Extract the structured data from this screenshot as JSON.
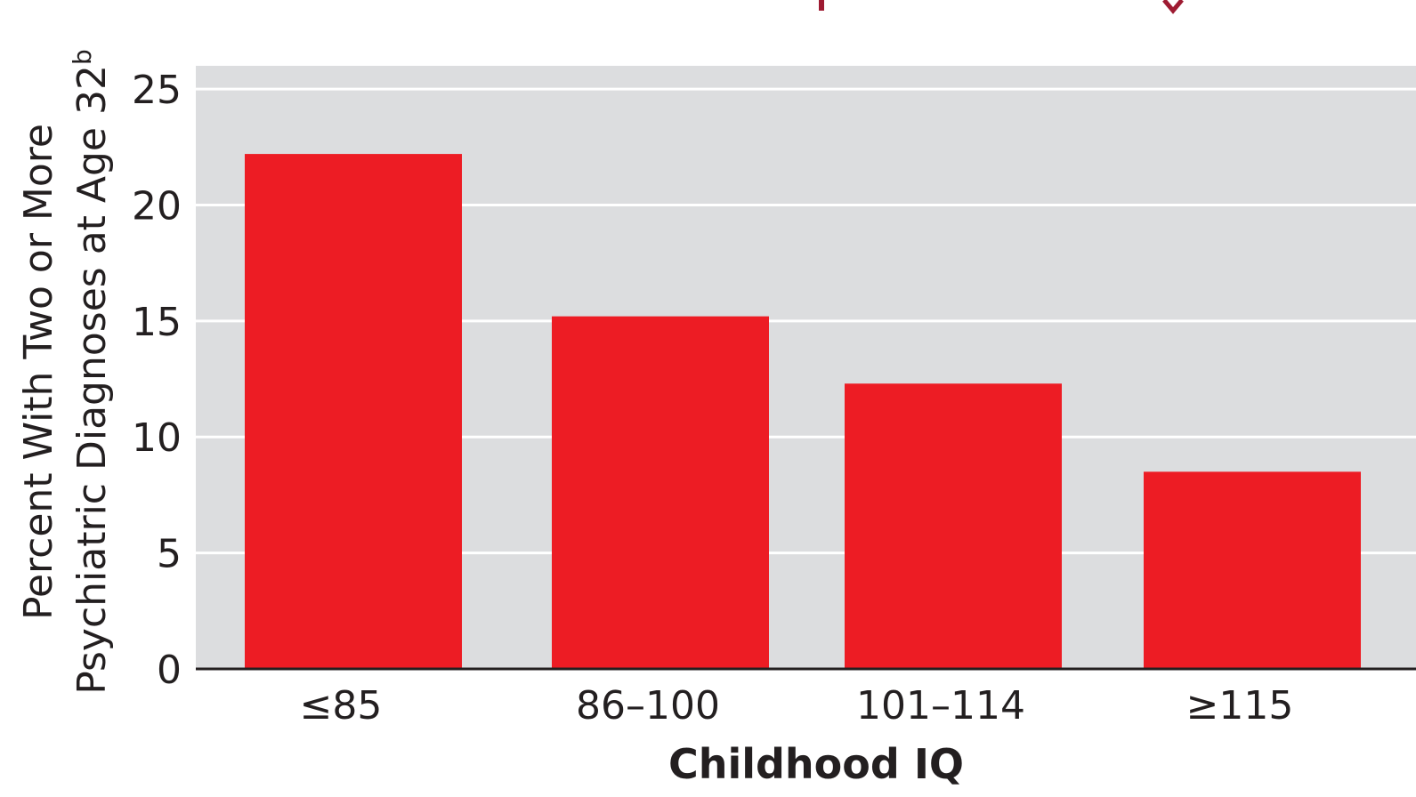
{
  "chart_data": {
    "type": "bar",
    "categories": [
      "≤85",
      "86–100",
      "101–114",
      "≥115"
    ],
    "values": [
      22.2,
      15.2,
      12.3,
      8.5
    ],
    "ylim": [
      0,
      26
    ],
    "yticks": [
      0,
      5,
      10,
      15,
      20,
      25
    ],
    "xlabel": "Childhood IQ",
    "ylabel_line1": "Percent With Two or More",
    "ylabel_line2": "Psychiatric Diagnoses at Age 32",
    "ylabel_superscript": "b",
    "grid": true,
    "colors": {
      "bar": "#ed1c24",
      "plot_background": "#dcdddf",
      "gridline": "#ffffff",
      "axis": "#231f20",
      "title": "#9e1b32"
    }
  }
}
